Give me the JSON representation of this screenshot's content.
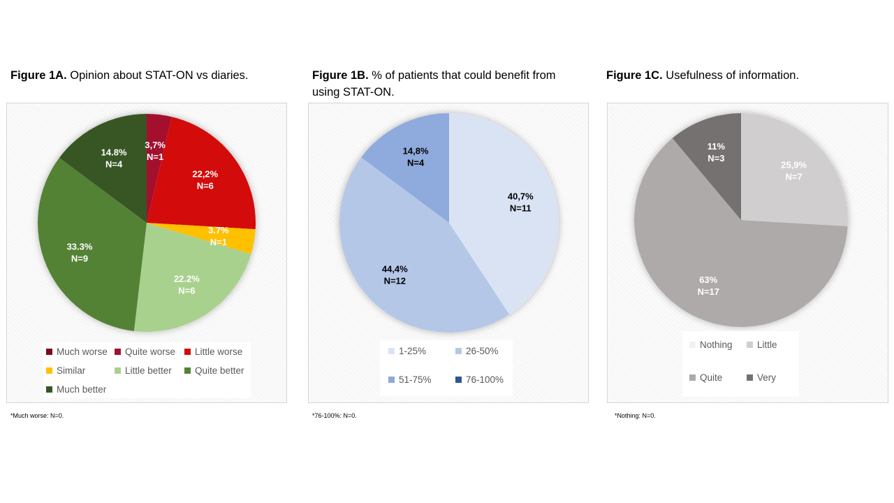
{
  "figures": {
    "a": {
      "title_bold": "Figure 1A.",
      "title_rest": " Opinion about STAT-ON vs diaries.",
      "footnote": "*Much worse: N=0."
    },
    "b": {
      "title_bold": "Figure 1B.",
      "title_rest": " % of patients that could benefit from using STAT-ON.",
      "footnote": "*76-100%: N=0."
    },
    "c": {
      "title_bold": "Figure 1C.",
      "title_rest": " Usefulness of information.",
      "footnote": "*Nothing: N=0."
    }
  },
  "chart_data": [
    {
      "type": "pie",
      "title": "Figure 1A. Opinion about STAT-ON vs diaries.",
      "categories": [
        "Much worse",
        "Quite worse",
        "Little worse",
        "Similar",
        "Little better",
        "Quite better",
        "Much better"
      ],
      "values": [
        0,
        1,
        6,
        1,
        6,
        9,
        4
      ],
      "percent_labels": [
        "",
        "3,7%",
        "22,2%",
        "3.7%",
        "22.2%",
        "33.3%",
        "14.8%"
      ],
      "n_labels": [
        "",
        "N=1",
        "N=6",
        "N=1",
        "N=6",
        "N=9",
        "N=4"
      ],
      "colors": [
        "#7b0a1e",
        "#a50f2e",
        "#d30b0b",
        "#ffc000",
        "#a9d18e",
        "#548235",
        "#375623"
      ],
      "label_colors": [
        "#ffffff",
        "#ffffff",
        "#ffffff",
        "#ffffff",
        "#ffffff",
        "#ffffff",
        "#ffffff"
      ],
      "legend_rows": [
        [
          "Much worse",
          "Quite worse",
          "Little worse"
        ],
        [
          "Similar",
          "Little better",
          "Quite better"
        ],
        [
          "Much better"
        ]
      ],
      "legend_position": "bottom"
    },
    {
      "type": "pie",
      "title": "Figure 1B. % of patients that could benefit from using STAT-ON.",
      "categories": [
        "1-25%",
        "26-50%",
        "51-75%",
        "76-100%"
      ],
      "values": [
        11,
        12,
        4,
        0
      ],
      "percent_labels": [
        "40,7%",
        "44,4%",
        "14,8%",
        ""
      ],
      "n_labels": [
        "N=11",
        "N=12",
        "N=4",
        ""
      ],
      "colors": [
        "#dae3f3",
        "#b4c7e7",
        "#8faadc",
        "#2f5597"
      ],
      "label_colors": [
        "#000000",
        "#000000",
        "#000000",
        "#000000"
      ],
      "legend_rows": [
        [
          "1-25%",
          "26-50%"
        ],
        [
          "51-75%",
          "76-100%"
        ]
      ],
      "legend_position": "bottom"
    },
    {
      "type": "pie",
      "title": "Figure 1C. Usefulness of information.",
      "categories": [
        "Nothing",
        "Little",
        "Quite",
        "Very"
      ],
      "values": [
        0,
        7,
        17,
        3
      ],
      "percent_labels": [
        "",
        "25,9%",
        "63%",
        "11%"
      ],
      "n_labels": [
        "",
        "N=7",
        "N=17",
        "N=3"
      ],
      "colors": [
        "#f2f2f2",
        "#d0cece",
        "#aeaaaa",
        "#767171"
      ],
      "label_colors": [
        "#ffffff",
        "#ffffff",
        "#ffffff",
        "#ffffff"
      ],
      "legend_rows": [
        [
          "Nothing",
          "Little"
        ],
        [
          "Quite",
          "Very"
        ]
      ],
      "legend_position": "bottom"
    }
  ]
}
